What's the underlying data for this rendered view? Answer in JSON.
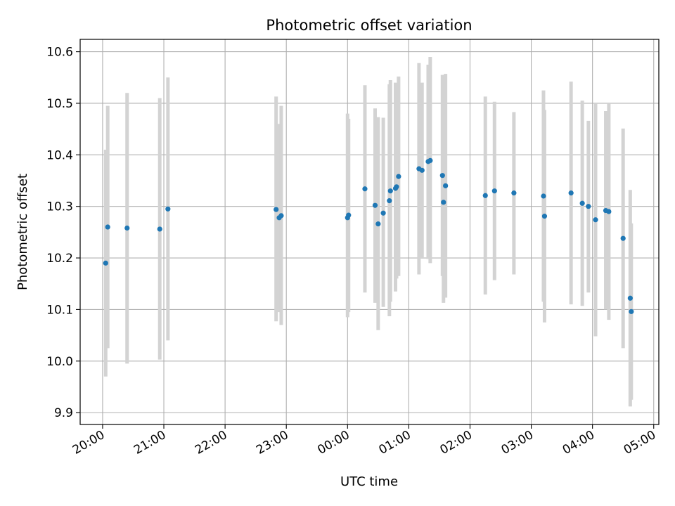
{
  "chart_data": {
    "type": "scatter",
    "title": "Photometric offset variation",
    "xlabel": "UTC time",
    "ylabel": "Photometric offset",
    "x_unit": "UTC time of day (HH:MM, night spanning midnight)",
    "xlim": [
      "19:38",
      "05:05"
    ],
    "ylim": [
      9.877,
      10.624
    ],
    "yticks": [
      9.9,
      10.0,
      10.1,
      10.2,
      10.3,
      10.4,
      10.5,
      10.6
    ],
    "ytick_labels": [
      "9.9",
      "10.0",
      "10.1",
      "10.2",
      "10.3",
      "10.4",
      "10.5",
      "10.6"
    ],
    "xticks": [
      "20:00",
      "21:00",
      "22:00",
      "23:00",
      "00:00",
      "01:00",
      "02:00",
      "03:00",
      "04:00",
      "05:00"
    ],
    "xtick_labels": [
      "20:00",
      "21:00",
      "22:00",
      "23:00",
      "00:00",
      "01:00",
      "02:00",
      "03:00",
      "04:00",
      "05:00"
    ],
    "grid": true,
    "colors": {
      "marker": "#1f77b4",
      "errorbar": "#d3d3d3",
      "grid": "#b0b0b0"
    },
    "points": [
      {
        "x": "20:03",
        "y": 10.19,
        "ylow": 9.97,
        "yhigh": 10.41
      },
      {
        "x": "20:05",
        "y": 10.26,
        "ylow": 10.025,
        "yhigh": 10.495
      },
      {
        "x": "20:24",
        "y": 10.258,
        "ylow": 9.995,
        "yhigh": 10.52
      },
      {
        "x": "20:56",
        "y": 10.256,
        "ylow": 10.003,
        "yhigh": 10.51
      },
      {
        "x": "21:04",
        "y": 10.295,
        "ylow": 10.04,
        "yhigh": 10.55
      },
      {
        "x": "22:50",
        "y": 10.294,
        "ylow": 10.077,
        "yhigh": 10.513
      },
      {
        "x": "22:53",
        "y": 10.278,
        "ylow": 10.095,
        "yhigh": 10.46
      },
      {
        "x": "22:55",
        "y": 10.282,
        "ylow": 10.07,
        "yhigh": 10.495
      },
      {
        "x": "00:00",
        "y": 10.278,
        "ylow": 10.085,
        "yhigh": 10.48
      },
      {
        "x": "00:01",
        "y": 10.283,
        "ylow": 10.095,
        "yhigh": 10.47
      },
      {
        "x": "00:17",
        "y": 10.334,
        "ylow": 10.133,
        "yhigh": 10.535
      },
      {
        "x": "00:27",
        "y": 10.302,
        "ylow": 10.113,
        "yhigh": 10.49
      },
      {
        "x": "00:30",
        "y": 10.266,
        "ylow": 10.06,
        "yhigh": 10.473
      },
      {
        "x": "00:35",
        "y": 10.287,
        "ylow": 10.105,
        "yhigh": 10.472
      },
      {
        "x": "00:41",
        "y": 10.311,
        "ylow": 10.087,
        "yhigh": 10.537
      },
      {
        "x": "00:42",
        "y": 10.33,
        "ylow": 10.115,
        "yhigh": 10.545
      },
      {
        "x": "00:47",
        "y": 10.335,
        "ylow": 10.135,
        "yhigh": 10.54
      },
      {
        "x": "00:48",
        "y": 10.338,
        "ylow": 10.16,
        "yhigh": 10.515
      },
      {
        "x": "00:50",
        "y": 10.358,
        "ylow": 10.165,
        "yhigh": 10.552
      },
      {
        "x": "01:10",
        "y": 10.373,
        "ylow": 10.168,
        "yhigh": 10.578
      },
      {
        "x": "01:13",
        "y": 10.37,
        "ylow": 10.2,
        "yhigh": 10.54
      },
      {
        "x": "01:19",
        "y": 10.387,
        "ylow": 10.198,
        "yhigh": 10.575
      },
      {
        "x": "01:21",
        "y": 10.389,
        "ylow": 10.19,
        "yhigh": 10.59
      },
      {
        "x": "01:33",
        "y": 10.36,
        "ylow": 10.165,
        "yhigh": 10.555
      },
      {
        "x": "01:34",
        "y": 10.308,
        "ylow": 10.113,
        "yhigh": 10.505
      },
      {
        "x": "01:36",
        "y": 10.34,
        "ylow": 10.123,
        "yhigh": 10.557
      },
      {
        "x": "02:15",
        "y": 10.321,
        "ylow": 10.129,
        "yhigh": 10.513
      },
      {
        "x": "02:24",
        "y": 10.33,
        "ylow": 10.157,
        "yhigh": 10.503
      },
      {
        "x": "02:43",
        "y": 10.326,
        "ylow": 10.168,
        "yhigh": 10.483
      },
      {
        "x": "03:12",
        "y": 10.32,
        "ylow": 10.115,
        "yhigh": 10.525
      },
      {
        "x": "03:13",
        "y": 10.281,
        "ylow": 10.075,
        "yhigh": 10.487
      },
      {
        "x": "03:39",
        "y": 10.326,
        "ylow": 10.11,
        "yhigh": 10.542
      },
      {
        "x": "03:50",
        "y": 10.306,
        "ylow": 10.107,
        "yhigh": 10.505
      },
      {
        "x": "03:56",
        "y": 10.3,
        "ylow": 10.133,
        "yhigh": 10.466
      },
      {
        "x": "04:03",
        "y": 10.274,
        "ylow": 10.048,
        "yhigh": 10.5
      },
      {
        "x": "04:13",
        "y": 10.292,
        "ylow": 10.1,
        "yhigh": 10.485
      },
      {
        "x": "04:16",
        "y": 10.29,
        "ylow": 10.08,
        "yhigh": 10.5
      },
      {
        "x": "04:30",
        "y": 10.238,
        "ylow": 10.025,
        "yhigh": 10.451
      },
      {
        "x": "04:37",
        "y": 10.122,
        "ylow": 9.912,
        "yhigh": 10.332
      },
      {
        "x": "04:38",
        "y": 10.096,
        "ylow": 9.925,
        "yhigh": 10.267
      }
    ]
  }
}
